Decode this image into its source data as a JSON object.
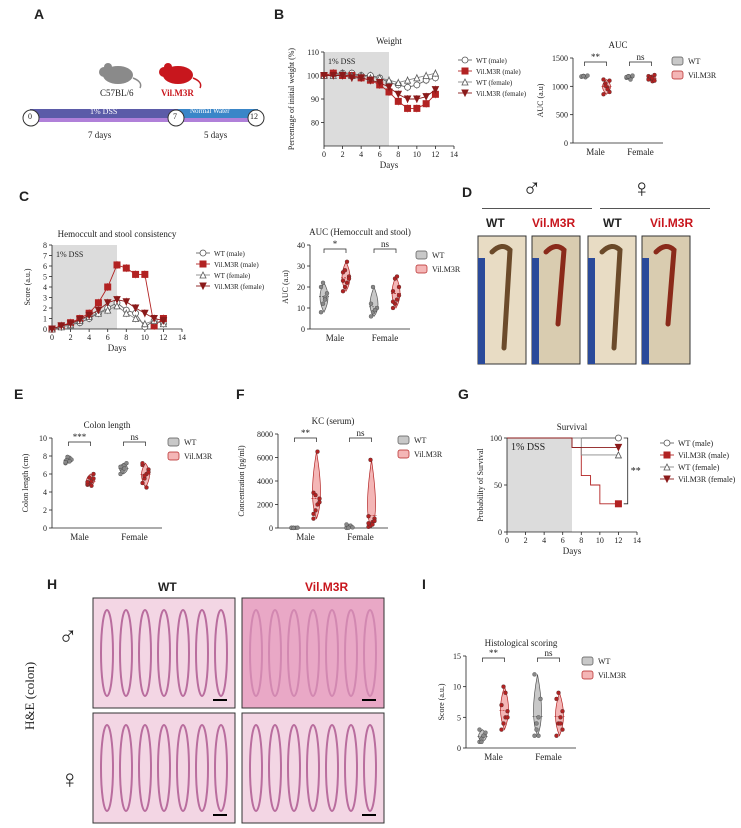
{
  "panels": {
    "A": {
      "letter": "A",
      "strain_wt": "C57BL/6",
      "strain_tg": "Vil.M3R",
      "phase1_label": "1% DSS",
      "phase2_label": "Normal Water",
      "day0": "0",
      "day7": "7",
      "day12": "12",
      "dur1": "7 days",
      "dur2": "5 days"
    },
    "B": {
      "letter": "B"
    },
    "C": {
      "letter": "C"
    },
    "D": {
      "letter": "D",
      "male_symbol": "♂",
      "female_symbol": "♀",
      "wt": "WT",
      "tg": "Vil.M3R"
    },
    "E": {
      "letter": "E"
    },
    "F": {
      "letter": "F"
    },
    "G": {
      "letter": "G"
    },
    "H": {
      "letter": "H",
      "wt": "WT",
      "tg": "Vil.M3R",
      "side_label": "H&E (colon)",
      "male_symbol": "♂",
      "female_symbol": "♀"
    },
    "I": {
      "letter": "I"
    }
  },
  "colors": {
    "wt_fill": "#c8c8c8",
    "tg_fill": "#f4b6b6",
    "tg_dark": "#b22222",
    "dss_shade": "#dcdcdc",
    "phase1": "#5b5ba8",
    "phase2": "#3a86c8"
  },
  "chart_data": [
    {
      "id": "B-weight",
      "type": "line",
      "title": "Weight",
      "xlabel": "Days",
      "ylabel": "Percentage of initial weight (%)",
      "shade_label": "1% DSS",
      "xlim": [
        0,
        14
      ],
      "ylim": [
        70,
        110
      ],
      "xticks": [
        0,
        2,
        4,
        6,
        8,
        10,
        12,
        14
      ],
      "yticks": [
        "80",
        "90",
        "100",
        "110"
      ],
      "x": [
        0,
        1,
        2,
        3,
        4,
        5,
        6,
        7,
        8,
        9,
        10,
        11,
        12
      ],
      "series": [
        {
          "name": "WT (male)",
          "marker": "circle-open",
          "values": [
            100,
            101,
            101,
            101,
            100,
            100,
            99,
            97,
            96,
            95,
            96,
            98,
            99
          ]
        },
        {
          "name": "Vil.M3R (male)",
          "marker": "square-filled",
          "values": [
            100,
            101,
            100,
            100,
            99,
            98,
            96,
            93,
            89,
            86,
            86,
            88,
            92
          ]
        },
        {
          "name": "WT (female)",
          "marker": "triangle-open",
          "values": [
            100,
            100,
            101,
            100,
            100,
            99,
            99,
            98,
            97,
            98,
            99,
            100,
            101
          ]
        },
        {
          "name": "Vil.M3R (female)",
          "marker": "triangle-down-filled",
          "values": [
            100,
            100,
            100,
            99,
            99,
            98,
            97,
            95,
            92,
            90,
            90,
            91,
            94
          ]
        }
      ]
    },
    {
      "id": "B-auc",
      "type": "violin",
      "title": "AUC",
      "ylabel": "AUC (a.u)",
      "ylim": [
        0,
        1500
      ],
      "yticks": [
        "0",
        "500",
        "1000",
        "1500"
      ],
      "categories": [
        "Male",
        "Female"
      ],
      "legend": [
        "WT",
        "Vil.M3R"
      ],
      "significance": [
        "**",
        "ns"
      ],
      "series": [
        {
          "name": "WT",
          "values": [
            [
              1170,
              1185,
              1160,
              1190,
              1175,
              1180
            ],
            [
              1150,
              1180,
              1120,
              1190,
              1165,
              1175
            ]
          ]
        },
        {
          "name": "Vil.M3R",
          "values": [
            [
              1120,
              1050,
              980,
              900,
              860,
              1010,
              950,
              1100
            ],
            [
              1180,
              1150,
              1090,
              1200,
              1120,
              1160,
              1140,
              1100
            ]
          ]
        }
      ]
    },
    {
      "id": "C-score",
      "type": "line",
      "title": "Hemoccult and stool consistency",
      "xlabel": "Days",
      "ylabel": "Score (a.u.)",
      "shade_label": "1% DSS",
      "xlim": [
        0,
        14
      ],
      "ylim": [
        0,
        8
      ],
      "xticks": [
        0,
        2,
        4,
        6,
        8,
        10,
        12,
        14
      ],
      "yticks": [
        "0",
        "1",
        "2",
        "3",
        "4",
        "5",
        "6",
        "7",
        "8"
      ],
      "x": [
        0,
        1,
        2,
        3,
        4,
        5,
        6,
        7,
        8,
        9,
        10,
        11,
        12
      ],
      "series": [
        {
          "name": "WT (male)",
          "marker": "circle-open",
          "values": [
            0,
            0.2,
            0.4,
            0.6,
            1.0,
            1.5,
            2.0,
            2.5,
            1.8,
            1.5,
            0.2,
            0.8,
            0.5
          ]
        },
        {
          "name": "Vil.M3R (male)",
          "marker": "square-filled",
          "values": [
            0,
            0.3,
            0.6,
            1.0,
            1.5,
            2.5,
            4.0,
            6.1,
            5.8,
            5.2,
            5.2,
            0.3,
            1.0
          ]
        },
        {
          "name": "WT (female)",
          "marker": "triangle-open",
          "values": [
            0,
            0.2,
            0.4,
            0.8,
            1.2,
            1.5,
            1.8,
            2.2,
            1.5,
            1.0,
            0.5,
            0.8,
            0.5
          ]
        },
        {
          "name": "Vil.M3R (female)",
          "marker": "triangle-down-filled",
          "values": [
            0,
            0.3,
            0.5,
            0.9,
            1.3,
            1.8,
            2.5,
            2.8,
            2.6,
            2.0,
            1.5,
            1.0,
            0.8
          ]
        }
      ]
    },
    {
      "id": "C-auc",
      "type": "violin",
      "title": "AUC (Hemoccult and stool)",
      "ylabel": "AUC (a.u)",
      "ylim": [
        0,
        40
      ],
      "yticks": [
        "0",
        "10",
        "20",
        "30",
        "40"
      ],
      "categories": [
        "Male",
        "Female"
      ],
      "legend": [
        "WT",
        "Vil.M3R"
      ],
      "significance": [
        "*",
        "ns"
      ],
      "series": [
        {
          "name": "WT",
          "values": [
            [
              8,
              12,
              15,
              17,
              20,
              22,
              14
            ],
            [
              6,
              8,
              9,
              10,
              12,
              20,
              9
            ]
          ]
        },
        {
          "name": "Vil.M3R",
          "values": [
            [
              18,
              20,
              22,
              25,
              27,
              28,
              32,
              24,
              23
            ],
            [
              10,
              12,
              14,
              16,
              18,
              24,
              25,
              20,
              13
            ]
          ]
        }
      ]
    },
    {
      "id": "E-colon",
      "type": "violin",
      "title": "Colon length",
      "ylabel": "Colon length (cm)",
      "ylim": [
        0,
        10
      ],
      "yticks": [
        "0",
        "2",
        "4",
        "6",
        "8",
        "10"
      ],
      "categories": [
        "Male",
        "Female"
      ],
      "legend": [
        "WT",
        "Vil.M3R"
      ],
      "significance": [
        "***",
        "ns"
      ],
      "series": [
        {
          "name": "WT",
          "values": [
            [
              7.2,
              7.5,
              7.8,
              7.6,
              7.3,
              7.9,
              7.4
            ],
            [
              6.0,
              6.5,
              7.0,
              7.2,
              6.8,
              6.3,
              6.6
            ]
          ]
        },
        {
          "name": "Vil.M3R",
          "values": [
            [
              4.8,
              5.0,
              5.2,
              5.5,
              4.9,
              5.6,
              4.7,
              6.0,
              5.1
            ],
            [
              5.0,
              5.5,
              6.0,
              6.5,
              7.0,
              5.8,
              4.5,
              6.2,
              7.2
            ]
          ]
        }
      ]
    },
    {
      "id": "F-kc",
      "type": "violin",
      "title": "KC (serum)",
      "ylabel": "Concentration (pg/ml)",
      "ylim": [
        0,
        8000
      ],
      "yticks": [
        "0",
        "2000",
        "4000",
        "6000",
        "8000"
      ],
      "categories": [
        "Male",
        "Female"
      ],
      "legend": [
        "WT",
        "Vil.M3R"
      ],
      "significance": [
        "**",
        "ns"
      ],
      "series": [
        {
          "name": "WT",
          "values": [
            [
              10,
              20,
              15,
              30,
              25,
              5
            ],
            [
              10,
              100,
              200,
              50,
              300,
              20
            ]
          ]
        },
        {
          "name": "Vil.M3R",
          "values": [
            [
              800,
              1500,
              2000,
              2500,
              3000,
              2800,
              6500,
              2200,
              1200
            ],
            [
              100,
              200,
              500,
              800,
              1000,
              5800,
              300,
              600,
              400
            ]
          ]
        }
      ]
    },
    {
      "id": "G-survival",
      "type": "line",
      "title": "Survival",
      "xlabel": "Days",
      "ylabel": "Probability of Survival",
      "shade_label": "1% DSS",
      "xlim": [
        0,
        14
      ],
      "ylim": [
        0,
        100
      ],
      "xticks": [
        0,
        2,
        4,
        6,
        8,
        10,
        12,
        14
      ],
      "yticks": [
        "0",
        "50",
        "100"
      ],
      "significance": "**",
      "steps": [
        {
          "name": "WT (male)",
          "marker": "circle-open",
          "x": [
            0,
            12
          ],
          "y": [
            100,
            100
          ]
        },
        {
          "name": "Vil.M3R (male)",
          "marker": "square-filled",
          "x": [
            0,
            7,
            8,
            9,
            10,
            12
          ],
          "y": [
            100,
            90,
            60,
            50,
            30,
            30
          ]
        },
        {
          "name": "WT (female)",
          "marker": "triangle-open",
          "x": [
            0,
            8,
            12
          ],
          "y": [
            100,
            82,
            82
          ]
        },
        {
          "name": "Vil.M3R (female)",
          "marker": "triangle-down-filled",
          "x": [
            0,
            7,
            9,
            12
          ],
          "y": [
            100,
            90,
            90,
            90
          ]
        }
      ]
    },
    {
      "id": "I-histo",
      "type": "violin",
      "title": "Histological scoring",
      "ylabel": "Score (a.u.)",
      "ylim": [
        0,
        15
      ],
      "yticks": [
        "0",
        "5",
        "10",
        "15"
      ],
      "categories": [
        "Male",
        "Female"
      ],
      "legend": [
        "WT",
        "Vil.M3R"
      ],
      "significance": [
        "**",
        "ns"
      ],
      "series": [
        {
          "name": "WT",
          "values": [
            [
              1,
              1.5,
              2,
              2.5,
              3,
              1,
              2
            ],
            [
              2,
              3,
              5,
              8,
              12,
              4,
              2
            ]
          ]
        },
        {
          "name": "Vil.M3R",
          "values": [
            [
              3,
              4,
              5,
              6,
              7,
              10,
              9,
              5
            ],
            [
              2,
              4,
              5,
              6,
              8,
              9,
              4,
              3
            ]
          ]
        }
      ]
    }
  ]
}
